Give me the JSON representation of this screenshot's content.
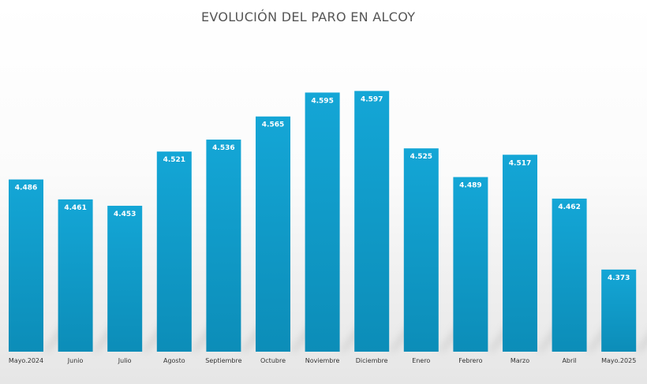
{
  "chart_data": {
    "type": "bar",
    "title": "EVOLUCIÓN DEL PARO EN ALCOY",
    "xlabel": "",
    "ylabel": "",
    "categories": [
      "Mayo.2024",
      "Junio",
      "Julio",
      "Agosto",
      "Septiembre",
      "Octubre",
      "Noviembre",
      "Diciembre",
      "Enero",
      "Febrero",
      "Marzo",
      "Abril",
      "Mayo.2025"
    ],
    "values": [
      4486,
      4461,
      4453,
      4521,
      4536,
      4565,
      4595,
      4597,
      4525,
      4489,
      4517,
      4462,
      4373
    ],
    "value_labels": [
      "4.486",
      "4.461",
      "4.453",
      "4.521",
      "4.536",
      "4.565",
      "4.595",
      "4.597",
      "4.525",
      "4.489",
      "4.517",
      "4.462",
      "4.373"
    ],
    "ylim": [
      4270,
      4630
    ],
    "grid": false,
    "legend": "none",
    "colors": {
      "bar_top": "#14a6d6",
      "bar_bottom": "#0c8db8",
      "label": "#ffffff"
    }
  }
}
